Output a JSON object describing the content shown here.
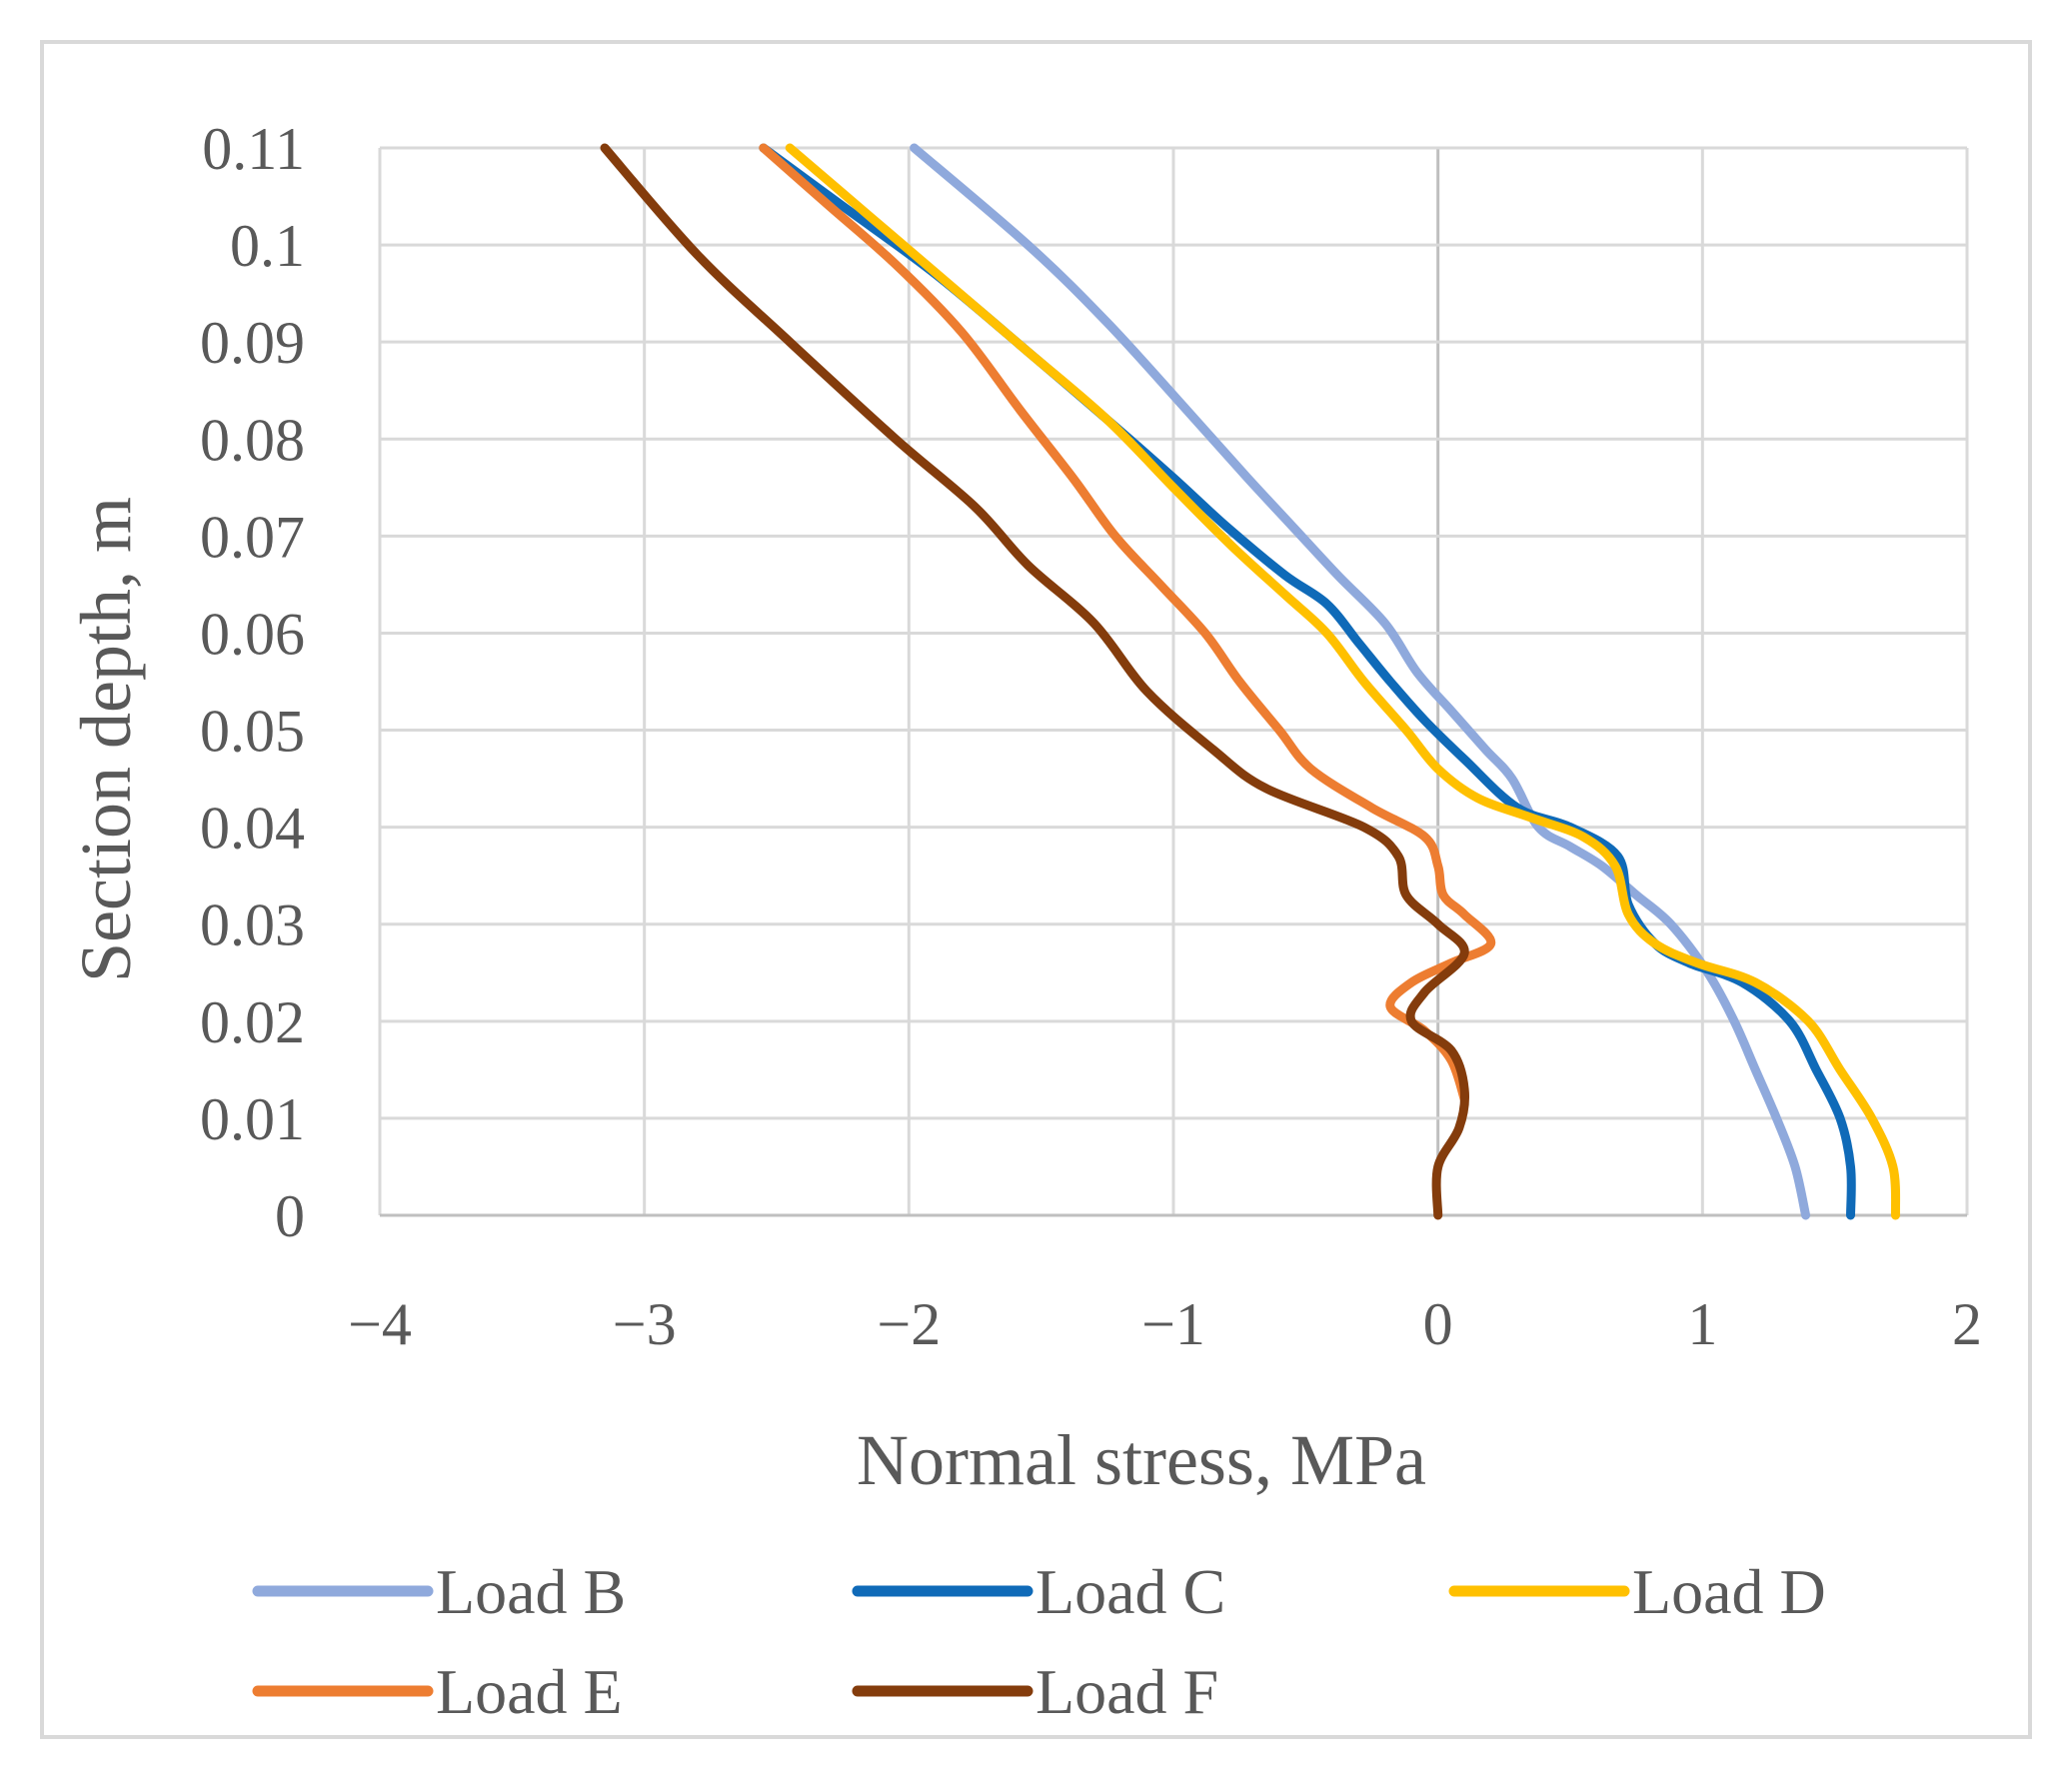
{
  "chart_data": {
    "type": "line",
    "title": "",
    "xlabel": "Normal stress, MPa",
    "ylabel": "Section depth, m",
    "xlim": [
      -4,
      2
    ],
    "ylim": [
      0,
      0.11
    ],
    "x_ticks": [
      "−4",
      "−3",
      "−2",
      "−1",
      "0",
      "1",
      "2"
    ],
    "y_ticks": [
      "0",
      "0.01",
      "0.02",
      "0.03",
      "0.04",
      "0.05",
      "0.06",
      "0.07",
      "0.08",
      "0.09",
      "0.1",
      "0.11"
    ],
    "grid": true,
    "legend_position": "bottom",
    "series": [
      {
        "name": "Load B",
        "color": "#8fa9dc",
        "points": [
          [
            1.39,
            0
          ],
          [
            1.35,
            0.005
          ],
          [
            1.28,
            0.01
          ],
          [
            1.2,
            0.015
          ],
          [
            1.12,
            0.02
          ],
          [
            1.02,
            0.025
          ],
          [
            0.88,
            0.03
          ],
          [
            0.75,
            0.033
          ],
          [
            0.62,
            0.036
          ],
          [
            0.5,
            0.038
          ],
          [
            0.38,
            0.04
          ],
          [
            0.28,
            0.045
          ],
          [
            0.18,
            0.048
          ],
          [
            0.05,
            0.052
          ],
          [
            -0.08,
            0.056
          ],
          [
            -0.2,
            0.061
          ],
          [
            -0.38,
            0.066
          ],
          [
            -0.55,
            0.071
          ],
          [
            -0.72,
            0.076
          ],
          [
            -0.95,
            0.083
          ],
          [
            -1.25,
            0.092
          ],
          [
            -1.55,
            0.1
          ],
          [
            -1.98,
            0.11
          ]
        ]
      },
      {
        "name": "Load C",
        "color": "#0f6ab8",
        "points": [
          [
            1.56,
            0
          ],
          [
            1.56,
            0.005
          ],
          [
            1.52,
            0.01
          ],
          [
            1.43,
            0.015
          ],
          [
            1.33,
            0.02
          ],
          [
            1.15,
            0.024
          ],
          [
            0.95,
            0.026
          ],
          [
            0.82,
            0.028
          ],
          [
            0.72,
            0.032
          ],
          [
            0.68,
            0.037
          ],
          [
            0.5,
            0.04
          ],
          [
            0.3,
            0.042
          ],
          [
            0.1,
            0.047
          ],
          [
            -0.05,
            0.051
          ],
          [
            -0.18,
            0.055
          ],
          [
            -0.3,
            0.059
          ],
          [
            -0.42,
            0.063
          ],
          [
            -0.58,
            0.066
          ],
          [
            -0.8,
            0.071
          ],
          [
            -1.0,
            0.076
          ],
          [
            -1.25,
            0.082
          ],
          [
            -1.55,
            0.089
          ],
          [
            -1.9,
            0.097
          ],
          [
            -2.25,
            0.104
          ],
          [
            -2.55,
            0.11
          ]
        ]
      },
      {
        "name": "Load D",
        "color": "#ffc000",
        "points": [
          [
            1.73,
            0
          ],
          [
            1.72,
            0.005
          ],
          [
            1.64,
            0.01
          ],
          [
            1.52,
            0.015
          ],
          [
            1.4,
            0.02
          ],
          [
            1.2,
            0.024
          ],
          [
            0.98,
            0.026
          ],
          [
            0.82,
            0.028
          ],
          [
            0.72,
            0.031
          ],
          [
            0.67,
            0.036
          ],
          [
            0.55,
            0.039
          ],
          [
            0.35,
            0.041
          ],
          [
            0.15,
            0.043
          ],
          [
            0.0,
            0.046
          ],
          [
            -0.12,
            0.05
          ],
          [
            -0.28,
            0.055
          ],
          [
            -0.42,
            0.06
          ],
          [
            -0.58,
            0.064
          ],
          [
            -0.78,
            0.069
          ],
          [
            -1.0,
            0.075
          ],
          [
            -1.25,
            0.082
          ],
          [
            -1.55,
            0.089
          ],
          [
            -1.85,
            0.096
          ],
          [
            -2.15,
            0.103
          ],
          [
            -2.45,
            0.11
          ]
        ]
      },
      {
        "name": "Load E",
        "color": "#ed7d31",
        "points": [
          [
            0.1,
            0.012
          ],
          [
            0.05,
            0.016
          ],
          [
            -0.05,
            0.019
          ],
          [
            -0.18,
            0.0215
          ],
          [
            -0.1,
            0.024
          ],
          [
            0.05,
            0.026
          ],
          [
            0.2,
            0.028
          ],
          [
            0.1,
            0.031
          ],
          [
            0.02,
            0.033
          ],
          [
            0.0,
            0.036
          ],
          [
            -0.05,
            0.039
          ],
          [
            -0.25,
            0.042
          ],
          [
            -0.48,
            0.046
          ],
          [
            -0.6,
            0.05
          ],
          [
            -0.75,
            0.055
          ],
          [
            -0.88,
            0.06
          ],
          [
            -1.05,
            0.065
          ],
          [
            -1.22,
            0.07
          ],
          [
            -1.38,
            0.076
          ],
          [
            -1.58,
            0.083
          ],
          [
            -1.8,
            0.091
          ],
          [
            -2.05,
            0.098
          ],
          [
            -2.3,
            0.104
          ],
          [
            -2.55,
            0.11
          ]
        ]
      },
      {
        "name": "Load F",
        "color": "#843c0c",
        "points": [
          [
            0.0,
            0
          ],
          [
            0.0,
            0.005
          ],
          [
            0.08,
            0.009
          ],
          [
            0.1,
            0.013
          ],
          [
            0.05,
            0.017
          ],
          [
            -0.1,
            0.02
          ],
          [
            -0.05,
            0.023
          ],
          [
            0.1,
            0.027
          ],
          [
            0.0,
            0.03
          ],
          [
            -0.12,
            0.033
          ],
          [
            -0.15,
            0.037
          ],
          [
            -0.28,
            0.04
          ],
          [
            -0.65,
            0.044
          ],
          [
            -0.85,
            0.048
          ],
          [
            -1.1,
            0.054
          ],
          [
            -1.3,
            0.061
          ],
          [
            -1.55,
            0.067
          ],
          [
            -1.75,
            0.073
          ],
          [
            -2.05,
            0.08
          ],
          [
            -2.45,
            0.09
          ],
          [
            -2.8,
            0.099
          ],
          [
            -3.15,
            0.11
          ]
        ]
      }
    ]
  }
}
